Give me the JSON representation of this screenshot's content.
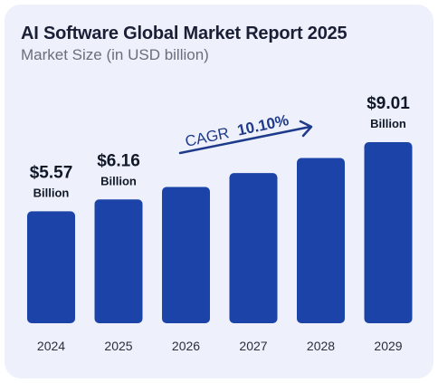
{
  "header": {
    "title": "AI Software Global Market Report 2025",
    "subtitle": "Market Size (in USD billion)"
  },
  "annotation": {
    "cagr_label": "CAGR",
    "cagr_value": "10.10%"
  },
  "colors": {
    "bar": "#1c44a8",
    "arrow": "#1e3a8a",
    "card_bg": "#eef0fb"
  },
  "chart_data": {
    "type": "bar",
    "title": "AI Software Global Market Report 2025",
    "subtitle": "Market Size (in USD billion)",
    "categories": [
      "2024",
      "2025",
      "2026",
      "2027",
      "2028",
      "2029"
    ],
    "values": [
      5.57,
      6.16,
      6.78,
      7.47,
      8.22,
      9.01
    ],
    "data_labels": [
      {
        "index": 0,
        "value": "$5.57",
        "unit": "Billion"
      },
      {
        "index": 1,
        "value": "$6.16",
        "unit": "Billion"
      },
      {
        "index": 5,
        "value": "$9.01",
        "unit": "Billion"
      }
    ],
    "cagr": "10.10%",
    "legend": "none",
    "grid": false
  }
}
